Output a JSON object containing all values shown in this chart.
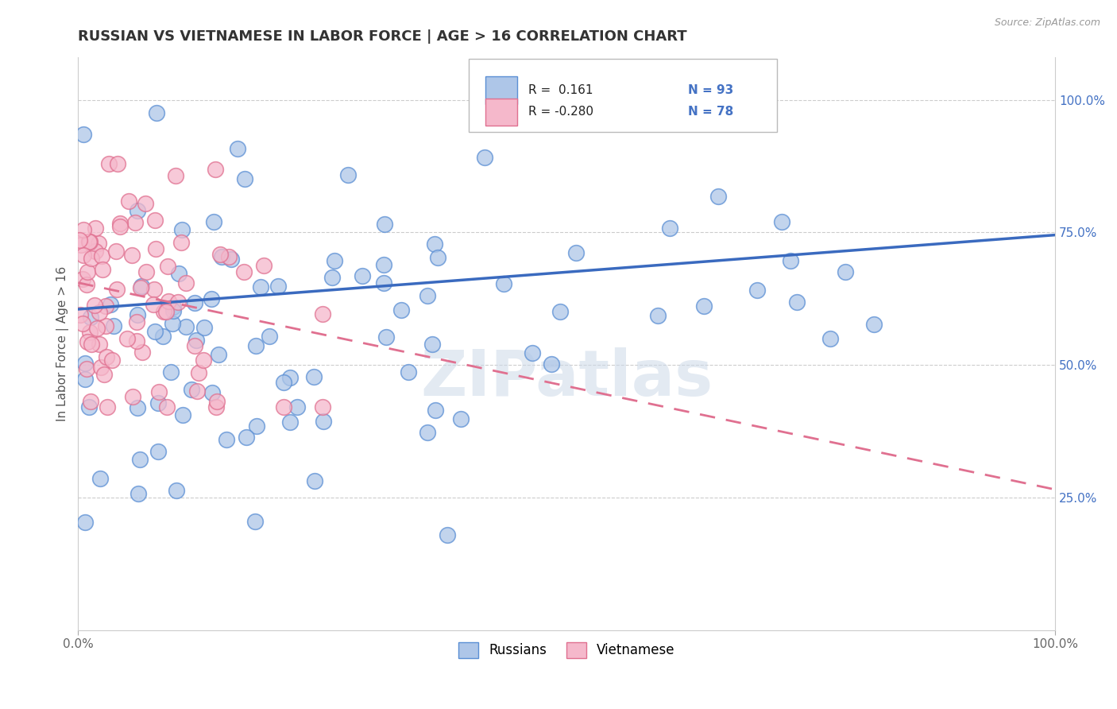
{
  "title": "RUSSIAN VS VIETNAMESE IN LABOR FORCE | AGE > 16 CORRELATION CHART",
  "source_text": "Source: ZipAtlas.com",
  "ylabel": "In Labor Force | Age > 16",
  "xlim": [
    0.0,
    1.0
  ],
  "ylim": [
    0.0,
    1.08
  ],
  "y_ticks_right": [
    0.25,
    0.5,
    0.75,
    1.0
  ],
  "y_tick_labels_right": [
    "25.0%",
    "50.0%",
    "75.0%",
    "100.0%"
  ],
  "russian_R": 0.161,
  "russian_N": 93,
  "vietnamese_R": -0.28,
  "vietnamese_N": 78,
  "russian_color": "#aec6e8",
  "russian_edge_color": "#5b8fd4",
  "vietnamese_color": "#f5b8cb",
  "vietnamese_edge_color": "#e07090",
  "russian_line_color": "#3a6abf",
  "vietnamese_line_color": "#e07090",
  "legend_label_russians": "Russians",
  "legend_label_vietnamese": "Vietnamese",
  "watermark": "ZIPatlas",
  "background_color": "#ffffff",
  "grid_color": "#cccccc",
  "title_color": "#333333",
  "title_fontsize": 13,
  "axis_label_color": "#555555",
  "tick_label_color_right": "#4472c4",
  "russian_seed": 7,
  "vietnamese_seed": 99,
  "rus_line_start_y": 0.605,
  "rus_line_end_y": 0.745,
  "viet_line_start_y": 0.655,
  "viet_line_end_y": 0.265
}
